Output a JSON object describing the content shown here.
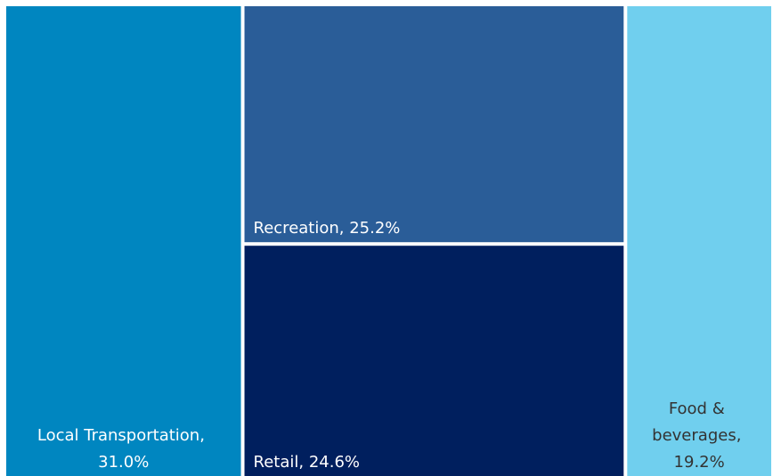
{
  "chart_data": {
    "type": "treemap",
    "values": [
      31.0,
      25.2,
      24.6,
      19.2
    ],
    "value_labels": [
      "Local Transportation, 31.0%",
      "Recreation, 25.2%",
      "Retail, 24.6%",
      "Food & beverages, 19.2%"
    ],
    "colors": [
      "#0086c0",
      "#2a5d98",
      "#001f5e",
      "#70cfee"
    ]
  }
}
